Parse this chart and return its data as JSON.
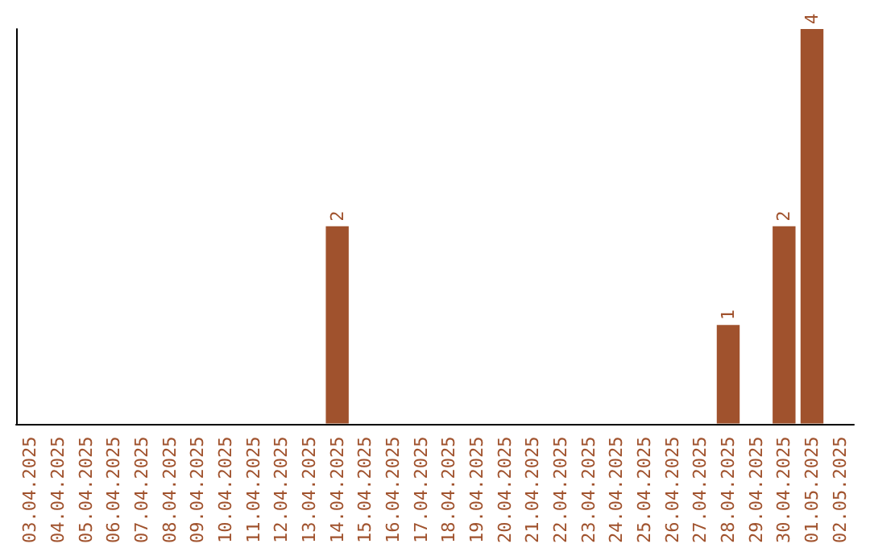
{
  "chart_data": {
    "type": "bar",
    "categories": [
      "03.04.2025",
      "04.04.2025",
      "05.04.2025",
      "06.04.2025",
      "07.04.2025",
      "08.04.2025",
      "09.04.2025",
      "10.04.2025",
      "11.04.2025",
      "12.04.2025",
      "13.04.2025",
      "14.04.2025",
      "15.04.2025",
      "16.04.2025",
      "17.04.2025",
      "18.04.2025",
      "19.04.2025",
      "20.04.2025",
      "21.04.2025",
      "22.04.2025",
      "23.04.2025",
      "24.04.2025",
      "25.04.2025",
      "26.04.2025",
      "27.04.2025",
      "28.04.2025",
      "29.04.2025",
      "30.04.2025",
      "01.05.2025",
      "02.05.2025"
    ],
    "values": [
      0,
      0,
      0,
      0,
      0,
      0,
      0,
      0,
      0,
      0,
      0,
      2,
      0,
      0,
      0,
      0,
      0,
      0,
      0,
      0,
      0,
      0,
      0,
      0,
      0,
      1,
      0,
      2,
      4,
      0
    ],
    "value_labels": [
      null,
      null,
      null,
      null,
      null,
      null,
      null,
      null,
      null,
      null,
      null,
      "2",
      null,
      null,
      null,
      null,
      null,
      null,
      null,
      null,
      null,
      null,
      null,
      null,
      null,
      "1",
      null,
      "2",
      "4",
      null
    ],
    "color": "#a0522d",
    "ylim": [
      0,
      4
    ],
    "tick_labels": "x",
    "grid": false
  }
}
